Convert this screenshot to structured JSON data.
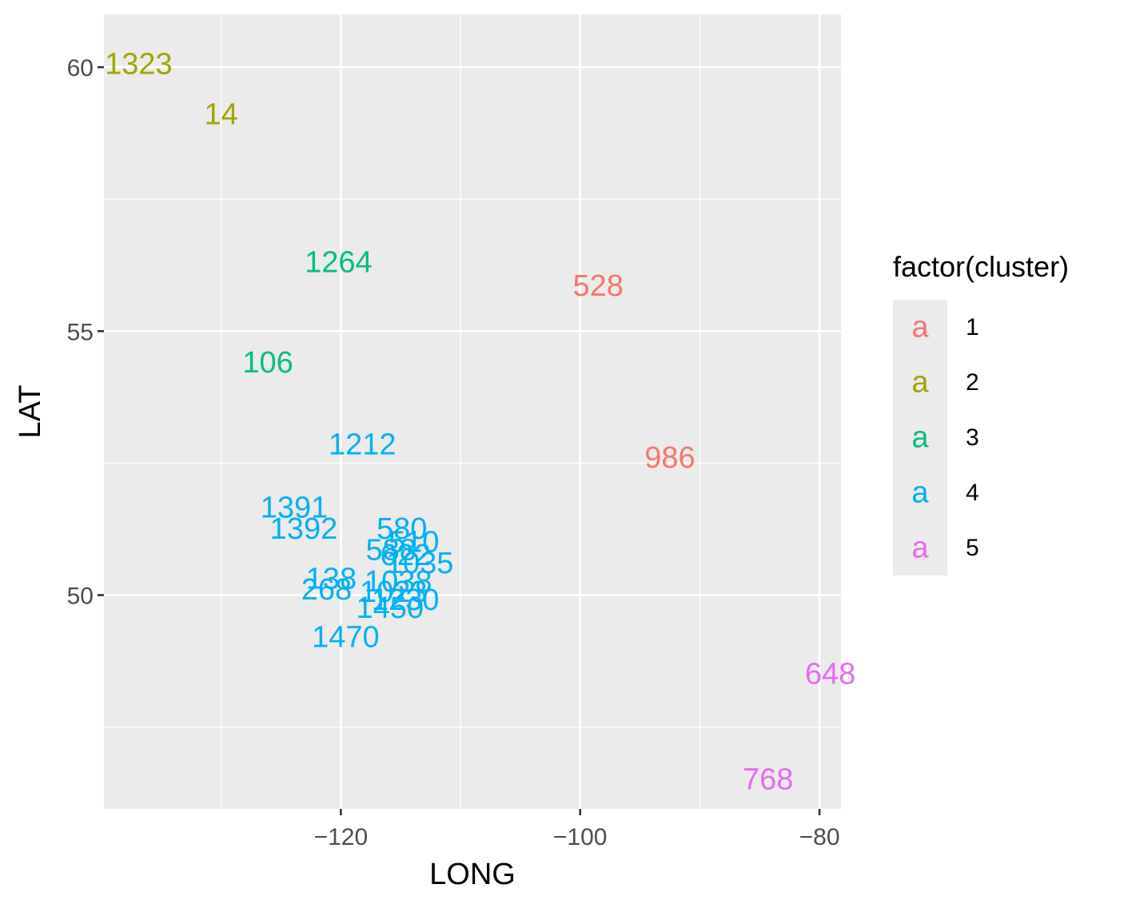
{
  "chart_data": {
    "type": "scatter",
    "mark": "text",
    "xlabel": "LONG",
    "ylabel": "LAT",
    "xlim": [
      -139.8,
      -78.2
    ],
    "ylim": [
      45.95,
      61.0
    ],
    "x_ticks": [
      -120,
      -100,
      -80
    ],
    "x_tick_labels": [
      "−120",
      "−100",
      "−80"
    ],
    "y_ticks": [
      50,
      55,
      60
    ],
    "y_tick_labels": [
      "50",
      "55",
      "60"
    ],
    "x_minor": [
      -130,
      -110,
      -90
    ],
    "y_minor": [
      47.5,
      52.5,
      57.5
    ],
    "grid": true,
    "legend": {
      "title": "factor(cluster)",
      "position": "right",
      "glyph": "a",
      "entries": [
        {
          "label": "1",
          "color": "#F8766D"
        },
        {
          "label": "2",
          "color": "#A3A500"
        },
        {
          "label": "3",
          "color": "#00BF7D"
        },
        {
          "label": "4",
          "color": "#00B0F6"
        },
        {
          "label": "5",
          "color": "#E76BF3"
        }
      ]
    },
    "points": [
      {
        "label": "1323",
        "x": -136.9,
        "y": 60.05,
        "cluster": 2
      },
      {
        "label": "14",
        "x": -130.0,
        "y": 59.1,
        "cluster": 2
      },
      {
        "label": "1264",
        "x": -120.2,
        "y": 56.3,
        "cluster": 3
      },
      {
        "label": "106",
        "x": -126.1,
        "y": 54.4,
        "cluster": 3
      },
      {
        "label": "528",
        "x": -98.5,
        "y": 55.85,
        "cluster": 1
      },
      {
        "label": "986",
        "x": -92.5,
        "y": 52.6,
        "cluster": 1
      },
      {
        "label": "1212",
        "x": -118.2,
        "y": 52.85,
        "cluster": 4
      },
      {
        "label": "1391",
        "x": -123.9,
        "y": 51.65,
        "cluster": 4
      },
      {
        "label": "1392",
        "x": -123.1,
        "y": 51.25,
        "cluster": 4
      },
      {
        "label": "580",
        "x": -114.9,
        "y": 51.25,
        "cluster": 4
      },
      {
        "label": "510",
        "x": -113.9,
        "y": 51.0,
        "cluster": 4
      },
      {
        "label": "588",
        "x": -115.8,
        "y": 50.85,
        "cluster": 4
      },
      {
        "label": "622",
        "x": -114.6,
        "y": 50.75,
        "cluster": 4
      },
      {
        "label": "1035",
        "x": -113.4,
        "y": 50.6,
        "cluster": 4
      },
      {
        "label": "138",
        "x": -120.8,
        "y": 50.3,
        "cluster": 4
      },
      {
        "label": "1038",
        "x": -115.2,
        "y": 50.25,
        "cluster": 4
      },
      {
        "label": "268",
        "x": -121.2,
        "y": 50.1,
        "cluster": 4
      },
      {
        "label": "1023",
        "x": -115.6,
        "y": 50.05,
        "cluster": 4
      },
      {
        "label": "1230",
        "x": -114.6,
        "y": 49.9,
        "cluster": 4
      },
      {
        "label": "1450",
        "x": -115.9,
        "y": 49.75,
        "cluster": 4
      },
      {
        "label": "1470",
        "x": -119.6,
        "y": 49.2,
        "cluster": 4
      },
      {
        "label": "648",
        "x": -79.1,
        "y": 48.5,
        "cluster": 5
      },
      {
        "label": "768",
        "x": -84.3,
        "y": 46.5,
        "cluster": 5
      }
    ]
  }
}
